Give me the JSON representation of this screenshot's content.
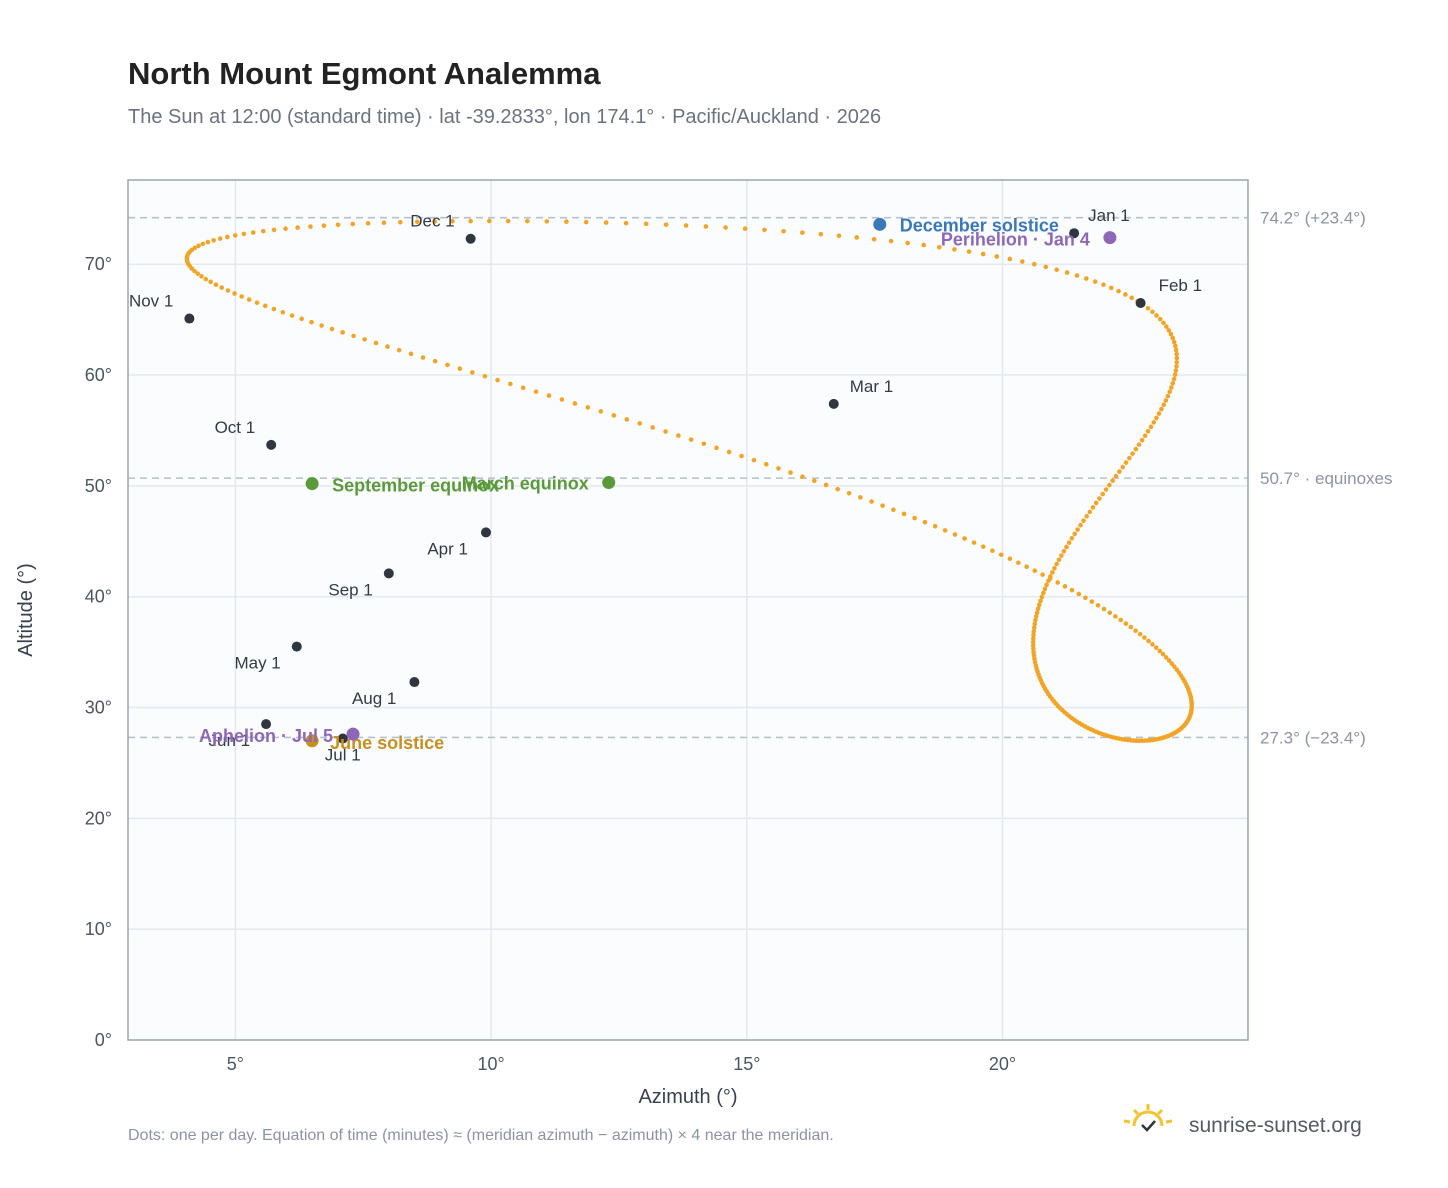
{
  "title": "North Mount Egmont Analemma",
  "subtitle": "The Sun at 12:00 (standard time) · lat -39.2833°, lon 174.1° · Pacific/Auckland · 2026",
  "footnote": "Dots: one per day. Equation of time (minutes) ≈ (meridian azimuth − azimuth) × 4 near the meridian.",
  "brand": "sunrise-sunset.org",
  "colors": {
    "curve": "#f2a426",
    "month_marker": "#2f3640",
    "equinox": "#5a9a3a",
    "solstice_dec": "#3a78b8",
    "solstice_jun": "#c8901c",
    "apsis": "#8e67b8",
    "plot_bg": "#fafcfe",
    "grid": "#e4e9ef",
    "frame": "#9aa5b4",
    "ref_line": "#b6c1cc",
    "brand_sun": "#f4c430"
  },
  "chart_data": {
    "type": "scatter",
    "xlabel": "Azimuth (°)",
    "ylabel": "Altitude (°)",
    "xlim": [
      2.9,
      24.8
    ],
    "ylim": [
      0,
      77.6
    ],
    "xticks": [
      5,
      10,
      15,
      20
    ],
    "xtick_labels": [
      "5°",
      "10°",
      "15°",
      "20°"
    ],
    "yticks": [
      0,
      10,
      20,
      30,
      40,
      50,
      60,
      70
    ],
    "ytick_labels": [
      "0°",
      "10°",
      "20°",
      "30°",
      "40°",
      "50°",
      "60°",
      "70°"
    ],
    "grid": true,
    "reference_lines": [
      {
        "y": 74.2,
        "label": "74.2° (+23.4°)"
      },
      {
        "y": 50.7,
        "label": "50.7° · equinoxes"
      },
      {
        "y": 27.3,
        "label": "27.3° (−23.4°)"
      }
    ],
    "month_markers": [
      {
        "label": "Jan 1",
        "x": 21.4,
        "y": 72.8
      },
      {
        "label": "Feb 1",
        "x": 22.7,
        "y": 66.5
      },
      {
        "label": "Mar 1",
        "x": 16.7,
        "y": 57.4
      },
      {
        "label": "Apr 1",
        "x": 9.9,
        "y": 45.8
      },
      {
        "label": "May 1",
        "x": 6.2,
        "y": 35.5
      },
      {
        "label": "Jun 1",
        "x": 5.6,
        "y": 28.5
      },
      {
        "label": "Jul 1",
        "x": 7.1,
        "y": 27.2
      },
      {
        "label": "Aug 1",
        "x": 8.5,
        "y": 32.3
      },
      {
        "label": "Sep 1",
        "x": 8.0,
        "y": 42.1
      },
      {
        "label": "Oct 1",
        "x": 5.7,
        "y": 53.7
      },
      {
        "label": "Nov 1",
        "x": 4.1,
        "y": 65.1
      },
      {
        "label": "Dec 1",
        "x": 9.6,
        "y": 72.3
      }
    ],
    "events": [
      {
        "label": "December solstice",
        "x": 17.6,
        "y": 73.6,
        "kind": "solstice_dec"
      },
      {
        "label": "Perihelion · Jan 4",
        "x": 22.1,
        "y": 72.4,
        "kind": "apsis"
      },
      {
        "label": "March equinox",
        "x": 12.3,
        "y": 50.3,
        "kind": "equinox"
      },
      {
        "label": "September equinox",
        "x": 6.5,
        "y": 50.2,
        "kind": "equinox"
      },
      {
        "label": "June solstice",
        "x": 6.5,
        "y": 27.0,
        "kind": "solstice_jun"
      },
      {
        "label": "Aphelion · Jul 5",
        "x": 7.3,
        "y": 27.6,
        "kind": "apsis"
      }
    ]
  }
}
